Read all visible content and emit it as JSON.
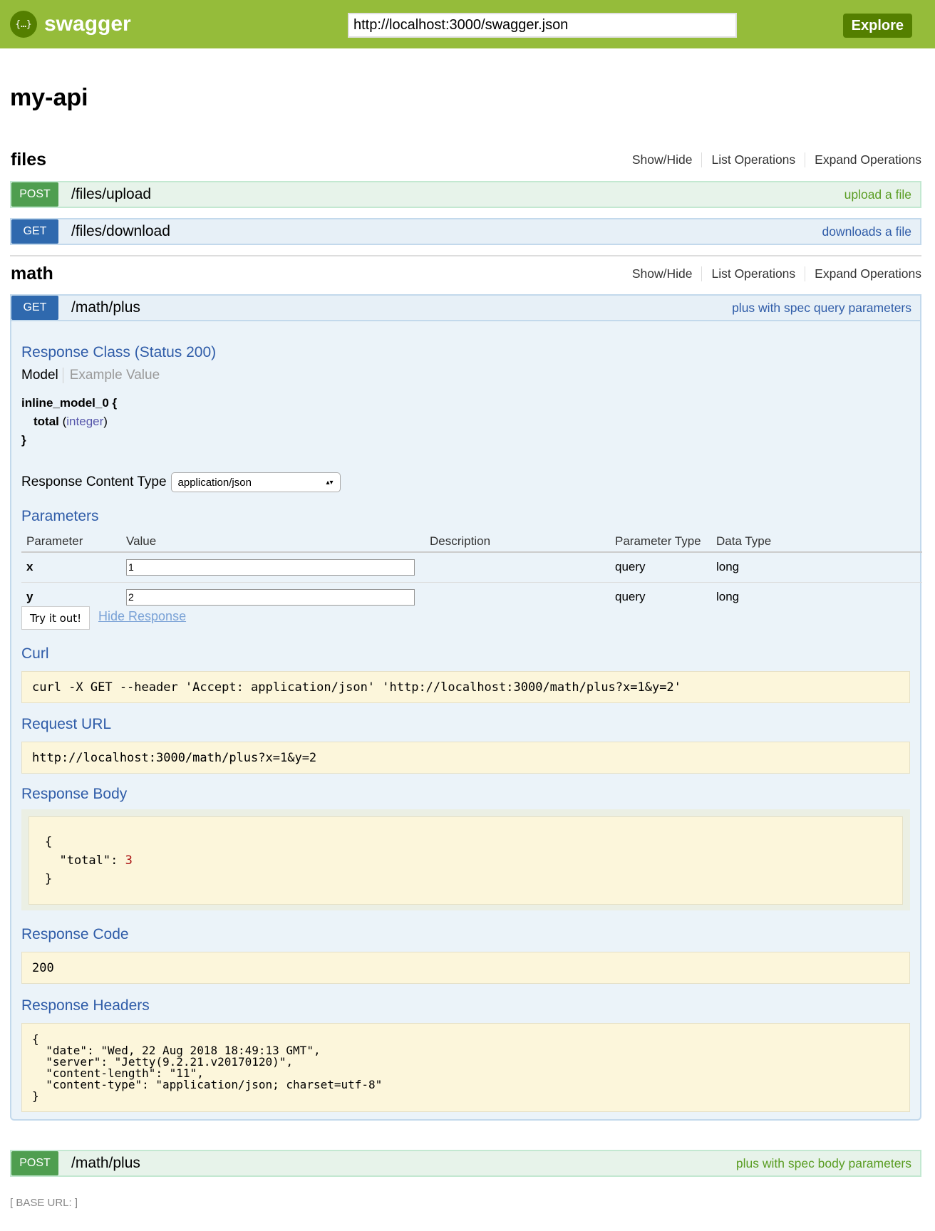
{
  "header": {
    "logo_icon": "{…}",
    "logo_text": "swagger",
    "url": "http://localhost:3000/swagger.json",
    "explore": "Explore",
    "color": "#95bc3a"
  },
  "title": "my-api",
  "sections": [
    {
      "name": "files",
      "links": [
        "Show/Hide",
        "List Operations",
        "Expand Operations"
      ],
      "ops": [
        {
          "verb": "POST",
          "path": "/files/upload",
          "summary": "upload a file"
        },
        {
          "verb": "GET",
          "path": "/files/download",
          "summary": "downloads a file"
        }
      ]
    },
    {
      "name": "math",
      "links": [
        "Show/Hide",
        "List Operations",
        "Expand Operations"
      ],
      "ops": [
        {
          "verb": "GET",
          "path": "/math/plus",
          "summary": "plus with spec query parameters"
        },
        {
          "verb": "POST",
          "path": "/math/plus",
          "summary": "plus with spec body parameters"
        }
      ]
    }
  ],
  "detail": {
    "response_class": "Response Class (Status 200)",
    "tab_model": "Model",
    "tab_example": "Example Value",
    "model_name": "inline_model_0 {",
    "field": "total",
    "field_type": "integer",
    "close": "}",
    "rct_label": "Response Content Type",
    "rct_value": "application/json",
    "params_title": "Parameters",
    "columns": [
      "Parameter",
      "Value",
      "Description",
      "Parameter Type",
      "Data Type"
    ],
    "params": [
      {
        "name": "x",
        "value": "1",
        "ptype": "query",
        "dtype": "long"
      },
      {
        "name": "y",
        "value": "2",
        "ptype": "query",
        "dtype": "long"
      }
    ],
    "try": "Try it out!",
    "hide": "Hide Response",
    "curl_title": "Curl",
    "curl": "curl -X GET --header 'Accept: application/json' 'http://localhost:3000/math/plus?x=1&y=2'",
    "req_title": "Request URL",
    "req": "http://localhost:3000/math/plus?x=1&y=2",
    "body_title": "Response Body",
    "body_open": "{",
    "body_key": "  \"total\": ",
    "body_val": "3",
    "body_close": "}",
    "code_title": "Response Code",
    "code": "200",
    "headers_title": "Response Headers",
    "headers": "{\n  \"date\": \"Wed, 22 Aug 2018 18:49:13 GMT\",\n  \"server\": \"Jetty(9.2.21.v20170120)\",\n  \"content-length\": \"11\",\n  \"content-type\": \"application/json; charset=utf-8\"\n}"
  },
  "base_url": "[ BASE URL: ]"
}
